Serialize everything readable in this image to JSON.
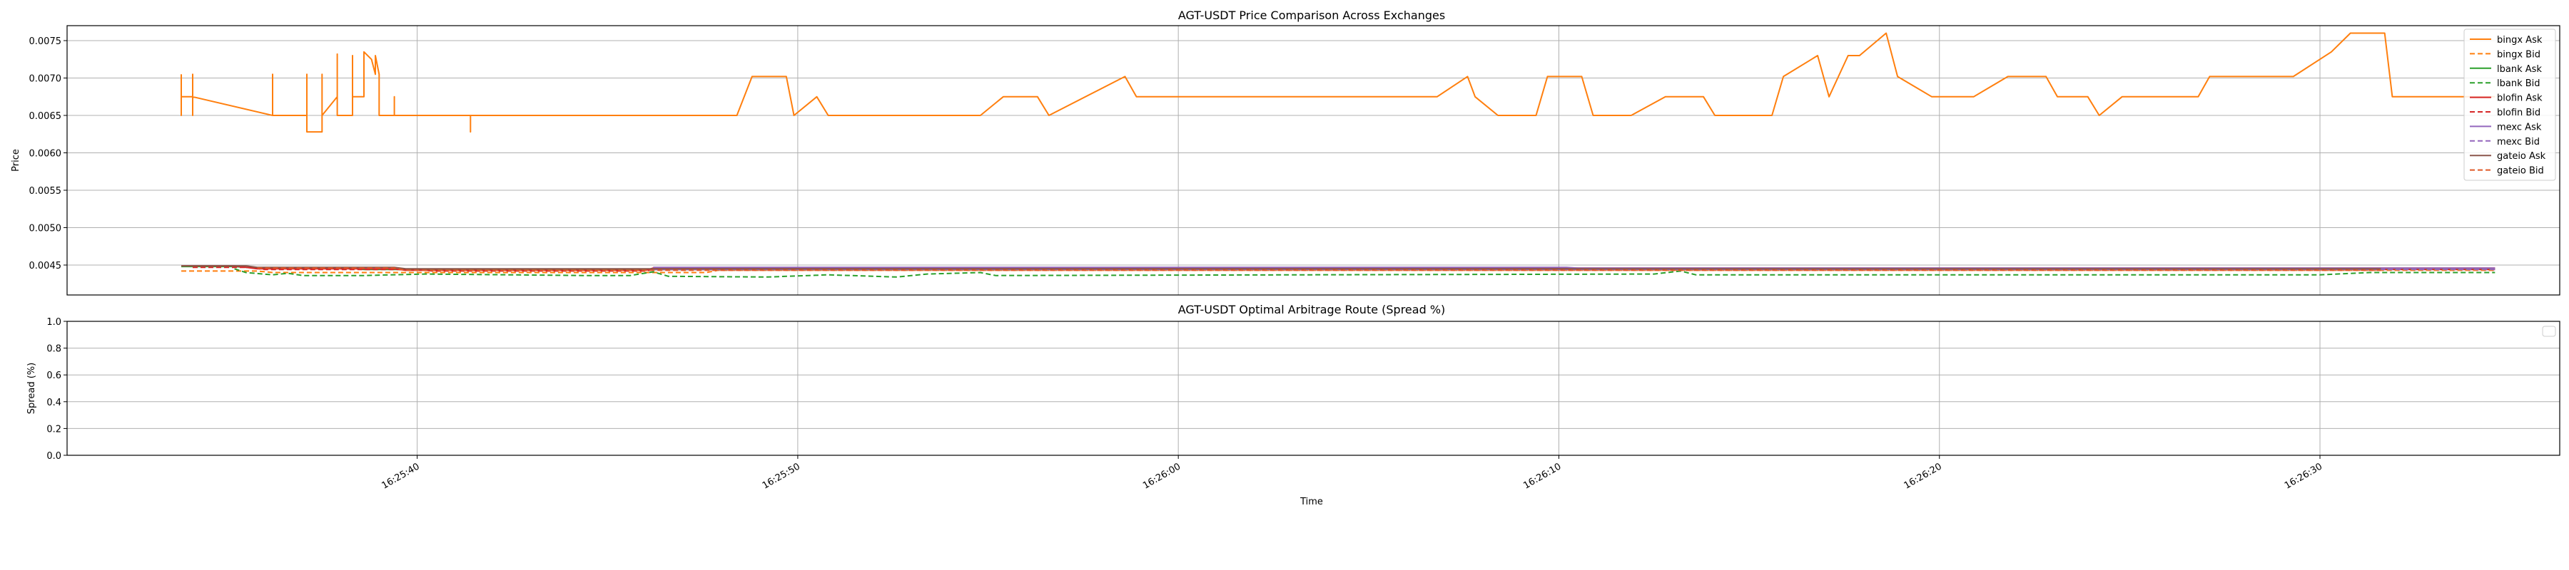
{
  "chart_data": [
    {
      "type": "line",
      "title": "AGT-USDT Price Comparison Across Exchanges",
      "xlabel": "",
      "ylabel": "Price",
      "ylim": [
        0.0041,
        0.0077
      ],
      "xlim": [
        "16:25:30.8",
        "16:26:36.3"
      ],
      "yticks": [
        "0.0045",
        "0.0050",
        "0.0055",
        "0.0060",
        "0.0065",
        "0.0070",
        "0.0075"
      ],
      "grid": true,
      "legend_position": "upper-right",
      "series": [
        {
          "name": "bingx Ask",
          "color": "#ff7f0e",
          "dash": "solid",
          "points": [
            [
              "16:25:33.8",
              0.00705
            ],
            [
              "16:25:33.8",
              0.0065
            ],
            [
              "16:25:33.8",
              0.00675
            ],
            [
              "16:25:34.1",
              0.00675
            ],
            [
              "16:25:34.1",
              0.0065
            ],
            [
              "16:25:34.1",
              0.00705
            ],
            [
              "16:25:34.1",
              0.00675
            ],
            [
              "16:25:36.2",
              0.0065
            ],
            [
              "16:25:36.2",
              0.00705
            ],
            [
              "16:25:36.2",
              0.0065
            ],
            [
              "16:25:37.1",
              0.0065
            ],
            [
              "16:25:37.1",
              0.00705
            ],
            [
              "16:25:37.1",
              0.00628
            ],
            [
              "16:25:37.5",
              0.00628
            ],
            [
              "16:25:37.5",
              0.00705
            ],
            [
              "16:25:37.5",
              0.0065
            ],
            [
              "16:25:37.9",
              0.00675
            ],
            [
              "16:25:37.9",
              0.00732
            ],
            [
              "16:25:37.9",
              0.0065
            ],
            [
              "16:25:38.3",
              0.0065
            ],
            [
              "16:25:38.3",
              0.0073
            ],
            [
              "16:25:38.3",
              0.00675
            ],
            [
              "16:25:38.6",
              0.00675
            ],
            [
              "16:25:38.6",
              0.00735
            ],
            [
              "16:25:38.8",
              0.00725
            ],
            [
              "16:25:38.9",
              0.00705
            ],
            [
              "16:25:38.9",
              0.0073
            ],
            [
              "16:25:39.0",
              0.00705
            ],
            [
              "16:25:39.0",
              0.0065
            ],
            [
              "16:25:39.4",
              0.0065
            ],
            [
              "16:25:39.4",
              0.00675
            ],
            [
              "16:25:39.4",
              0.0065
            ],
            [
              "16:25:41.4",
              0.0065
            ],
            [
              "16:25:41.4",
              0.00628
            ],
            [
              "16:25:41.4",
              0.0065
            ],
            [
              "16:25:48.4",
              0.0065
            ],
            [
              "16:25:48.8",
              0.00702
            ],
            [
              "16:25:49.7",
              0.00702
            ],
            [
              "16:25:49.9",
              0.0065
            ],
            [
              "16:25:50.5",
              0.00675
            ],
            [
              "16:25:50.8",
              0.0065
            ],
            [
              "16:25:54.8",
              0.0065
            ],
            [
              "16:25:55.4",
              0.00675
            ],
            [
              "16:25:56.3",
              0.00675
            ],
            [
              "16:25:56.6",
              0.0065
            ],
            [
              "16:25:58.6",
              0.00702
            ],
            [
              "16:25:58.9",
              0.00675
            ],
            [
              "16:26:06.8",
              0.00675
            ],
            [
              "16:26:07.6",
              0.00702
            ],
            [
              "16:26:07.8",
              0.00675
            ],
            [
              "16:26:08.4",
              0.0065
            ],
            [
              "16:26:09.4",
              0.0065
            ],
            [
              "16:26:09.7",
              0.00702
            ],
            [
              "16:26:10.6",
              0.00702
            ],
            [
              "16:26:10.9",
              0.0065
            ],
            [
              "16:26:11.9",
              0.0065
            ],
            [
              "16:26:12.8",
              0.00675
            ],
            [
              "16:26:13.8",
              0.00675
            ],
            [
              "16:26:14.1",
              0.0065
            ],
            [
              "16:26:15.6",
              0.0065
            ],
            [
              "16:26:15.9",
              0.00702
            ],
            [
              "16:26:16.8",
              0.0073
            ],
            [
              "16:26:17.1",
              0.00675
            ],
            [
              "16:26:17.6",
              0.0073
            ],
            [
              "16:26:17.9",
              0.0073
            ],
            [
              "16:26:18.6",
              0.0076
            ],
            [
              "16:26:18.9",
              0.00702
            ],
            [
              "16:26:19.8",
              0.00675
            ],
            [
              "16:26:20.9",
              0.00675
            ],
            [
              "16:26:21.8",
              0.00702
            ],
            [
              "16:26:22.8",
              0.00702
            ],
            [
              "16:26:23.1",
              0.00675
            ],
            [
              "16:26:23.9",
              0.00675
            ],
            [
              "16:26:24.2",
              0.0065
            ],
            [
              "16:26:24.8",
              0.00675
            ],
            [
              "16:26:26.8",
              0.00675
            ],
            [
              "16:26:27.1",
              0.00702
            ],
            [
              "16:26:29.3",
              0.00702
            ],
            [
              "16:26:30.3",
              0.00735
            ],
            [
              "16:26:30.8",
              0.0076
            ],
            [
              "16:26:31.7",
              0.0076
            ],
            [
              "16:26:31.9",
              0.00675
            ],
            [
              "16:26:34.6",
              0.00675
            ]
          ]
        },
        {
          "name": "bingx Bid",
          "color": "#ff7f0e",
          "dash": "dashed",
          "points": [
            [
              "16:25:33.8",
              0.00442
            ],
            [
              "16:25:35.8",
              0.00442
            ],
            [
              "16:25:36.2",
              0.0044
            ],
            [
              "16:25:47.6",
              0.0044
            ],
            [
              "16:25:47.9",
              0.00443
            ],
            [
              "16:26:34.6",
              0.00443
            ]
          ]
        },
        {
          "name": "lbank Ask",
          "color": "#2ca02c",
          "dash": "solid",
          "points": [
            [
              "16:25:33.8",
              0.00448
            ],
            [
              "16:25:35.2",
              0.00448
            ],
            [
              "16:25:35.8",
              0.00446
            ],
            [
              "16:25:38.3",
              0.00446
            ],
            [
              "16:25:38.6",
              0.00444
            ],
            [
              "16:25:56.0",
              0.00444
            ],
            [
              "16:25:56.3",
              0.00445
            ],
            [
              "16:26:34.6",
              0.00445
            ]
          ]
        },
        {
          "name": "lbank Bid",
          "color": "#2ca02c",
          "dash": "dashed",
          "points": [
            [
              "16:25:35.2",
              0.00445
            ],
            [
              "16:25:35.5",
              0.0044
            ],
            [
              "16:25:36.2",
              0.00437
            ],
            [
              "16:25:36.6",
              0.00439
            ],
            [
              "16:25:37.0",
              0.00436
            ],
            [
              "16:25:38.6",
              0.00436
            ],
            [
              "16:25:40.2",
              0.00438
            ],
            [
              "16:25:44.4",
              0.00436
            ],
            [
              "16:25:45.6",
              0.00436
            ],
            [
              "16:25:46.2",
              0.00441
            ],
            [
              "16:25:46.6",
              0.00435
            ],
            [
              "16:25:49.2",
              0.00434
            ],
            [
              "16:25:50.8",
              0.00437
            ],
            [
              "16:25:52.6",
              0.00434
            ],
            [
              "16:25:53.4",
              0.00438
            ],
            [
              "16:25:54.8",
              0.0044
            ],
            [
              "16:25:55.2",
              0.00436
            ],
            [
              "16:26:12.5",
              0.00438
            ],
            [
              "16:26:13.2",
              0.00442
            ],
            [
              "16:26:13.6",
              0.00437
            ],
            [
              "16:26:30.0",
              0.00437
            ],
            [
              "16:26:31.3",
              0.0044
            ],
            [
              "16:26:34.6",
              0.0044
            ]
          ]
        },
        {
          "name": "blofin Ask",
          "color": "#d62728",
          "dash": "solid",
          "points": [
            [
              "16:25:33.8",
              0.00449
            ],
            [
              "16:25:35.2",
              0.00449
            ],
            [
              "16:25:35.8",
              0.00445
            ],
            [
              "16:25:39.4",
              0.00445
            ],
            [
              "16:25:39.7",
              0.00443
            ],
            [
              "16:25:46.0",
              0.00443
            ],
            [
              "16:25:46.2",
              0.00446
            ],
            [
              "16:26:34.6",
              0.00446
            ]
          ]
        },
        {
          "name": "blofin Bid",
          "color": "#d62728",
          "dash": "dashed",
          "points": [
            [
              "16:25:34.1",
              0.00447
            ],
            [
              "16:25:35.6",
              0.00447
            ],
            [
              "16:25:36.0",
              0.00444
            ],
            [
              "16:25:40.1",
              0.00444
            ],
            [
              "16:25:40.4",
              0.00442
            ],
            [
              "16:25:46.0",
              0.00442
            ],
            [
              "16:25:46.2",
              0.00444
            ],
            [
              "16:26:34.6",
              0.00444
            ]
          ]
        },
        {
          "name": "mexc Ask",
          "color": "#9467bd",
          "dash": "solid",
          "points": [
            [
              "16:25:46.2",
              0.00447
            ],
            [
              "16:26:10.2",
              0.00447
            ],
            [
              "16:26:10.5",
              0.00446
            ],
            [
              "16:26:34.6",
              0.00446
            ]
          ]
        },
        {
          "name": "mexc Bid",
          "color": "#9467bd",
          "dash": "dashed",
          "points": [
            [
              "16:25:46.2",
              0.00444
            ],
            [
              "16:26:34.6",
              0.00444
            ]
          ]
        },
        {
          "name": "gateio Ask",
          "color": "#8c564b",
          "dash": "solid",
          "points": [
            [
              "16:25:33.8",
              0.00449
            ],
            [
              "16:25:35.5",
              0.00449
            ],
            [
              "16:25:35.8",
              0.00447
            ],
            [
              "16:25:39.4",
              0.00447
            ],
            [
              "16:25:39.7",
              0.00445
            ],
            [
              "16:26:31.6",
              0.00445
            ]
          ]
        },
        {
          "name": "gateio Bid",
          "color": "#e05a28",
          "dash": "dashed",
          "points": [
            [
              "16:25:35.8",
              0.00446
            ],
            [
              "16:25:39.4",
              0.00446
            ],
            [
              "16:25:39.7",
              0.00443
            ],
            [
              "16:26:31.6",
              0.00443
            ]
          ]
        }
      ]
    },
    {
      "type": "line",
      "title": "AGT-USDT Optimal Arbitrage Route (Spread %)",
      "xlabel": "Time",
      "ylabel": "Spread (%)",
      "ylim": [
        0.0,
        1.0
      ],
      "xlim": [
        "16:25:30.8",
        "16:26:36.3"
      ],
      "yticks": [
        "0.0",
        "0.2",
        "0.4",
        "0.6",
        "0.8",
        "1.0"
      ],
      "xticks": [
        "16:25:40",
        "16:25:50",
        "16:26:00",
        "16:26:10",
        "16:26:20",
        "16:26:30"
      ],
      "grid": true,
      "legend_position": "upper-right",
      "series": []
    }
  ]
}
